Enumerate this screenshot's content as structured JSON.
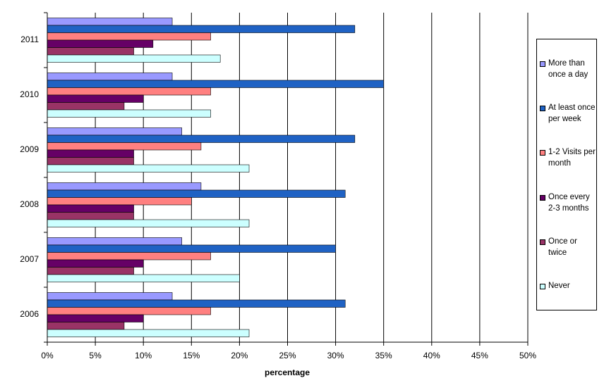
{
  "chart_data": {
    "type": "bar",
    "orientation": "horizontal",
    "categories": [
      "2011",
      "2010",
      "2009",
      "2008",
      "2007",
      "2006"
    ],
    "series": [
      {
        "name": "More than once a day",
        "color": "#9999ff",
        "values": [
          13,
          13,
          14,
          16,
          14,
          13
        ]
      },
      {
        "name": "At least once per week",
        "color": "#1f62c4",
        "values": [
          32,
          35,
          32,
          31,
          30,
          31
        ]
      },
      {
        "name": "1-2 Visits per month",
        "color": "#ff8080",
        "values": [
          17,
          17,
          16,
          15,
          17,
          17
        ]
      },
      {
        "name": "Once every 2-3 months",
        "color": "#660066",
        "values": [
          11,
          10,
          9,
          9,
          10,
          10
        ]
      },
      {
        "name": "Once or twice",
        "color": "#993366",
        "values": [
          9,
          8,
          9,
          9,
          9,
          8
        ]
      },
      {
        "name": "Never",
        "color": "#ccffff",
        "values": [
          18,
          17,
          21,
          21,
          20,
          21
        ]
      }
    ],
    "xlabel": "percentage",
    "xlim": [
      0,
      50
    ],
    "xticks": [
      {
        "value": 0,
        "label": "0%"
      },
      {
        "value": 5,
        "label": "5%"
      },
      {
        "value": 10,
        "label": "10%"
      },
      {
        "value": 15,
        "label": "15%"
      },
      {
        "value": 20,
        "label": "20%"
      },
      {
        "value": 25,
        "label": "25%"
      },
      {
        "value": 30,
        "label": "30%"
      },
      {
        "value": 35,
        "label": "35%"
      },
      {
        "value": 40,
        "label": "40%"
      },
      {
        "value": 45,
        "label": "45%"
      },
      {
        "value": 50,
        "label": "50%"
      }
    ],
    "grid": true,
    "legend": "right"
  }
}
